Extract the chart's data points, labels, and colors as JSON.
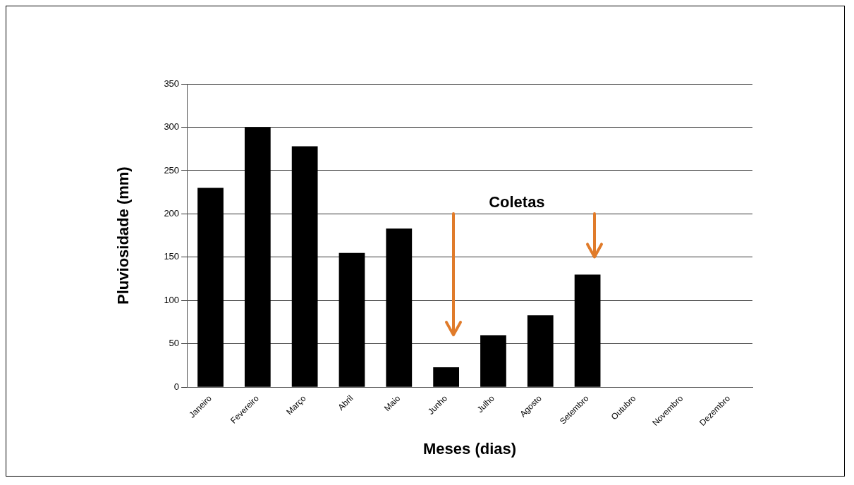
{
  "chart_data": {
    "type": "bar",
    "xlabel": "Meses (dias)",
    "ylabel": "Pluviosidade (mm)",
    "annotations": [
      "Coletas"
    ],
    "categories": [
      "Janeiro",
      "Fevereiro",
      "Março",
      "Abril",
      "Maio",
      "Junho",
      "Julho",
      "Agosto",
      "Setembro",
      "Outubro",
      "Novembro",
      "Dezembro"
    ],
    "values": [
      230,
      300,
      278,
      155,
      183,
      23,
      60,
      83,
      130,
      0,
      0,
      0
    ],
    "color": "#000000",
    "ylim": [
      0,
      350
    ],
    "yticks": [
      0,
      50,
      100,
      150,
      200,
      250,
      300,
      350
    ],
    "grid": "y",
    "legend": false
  }
}
